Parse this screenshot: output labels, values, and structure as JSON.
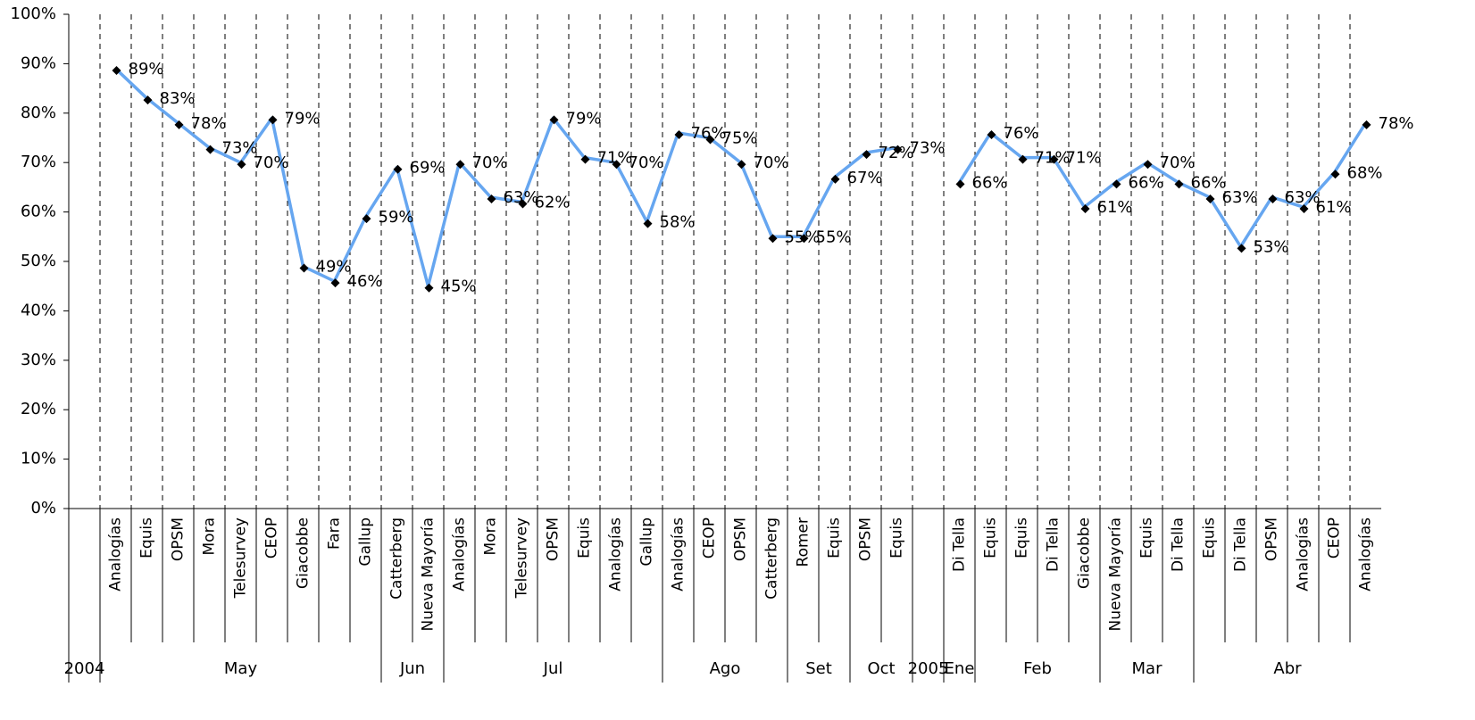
{
  "chart_data": {
    "type": "line",
    "categories": [
      null,
      "Analogías",
      "Equis",
      "OPSM",
      "Mora",
      "Telesurvey",
      "CEOP",
      "Giacobbe",
      "Fara",
      "Gallup",
      "Catterberg",
      "Nueva Mayoría",
      "Analogías",
      "Mora",
      "Telesurvey",
      "OPSM",
      "Equis",
      "Analogías",
      "Gallup",
      "Analogías",
      "CEOP",
      "OPSM",
      "Catterberg",
      "Romer",
      "Equis",
      "OPSM",
      "Equis",
      null,
      "Di Tella",
      "Equis",
      "Equis",
      "Di Tella",
      "Giacobbe",
      "Nueva Mayoría",
      "Equis",
      "Di Tella",
      "Equis",
      "Di Tella",
      "OPSM",
      "Analogías",
      "CEOP",
      "Analogías"
    ],
    "months": [
      "2004",
      "May",
      null,
      null,
      null,
      null,
      null,
      null,
      null,
      null,
      "Jun",
      null,
      "Jul",
      null,
      null,
      null,
      null,
      null,
      null,
      "Ago",
      null,
      null,
      null,
      "Set",
      null,
      "Oct",
      null,
      "2005",
      "Ene",
      "Feb",
      null,
      null,
      null,
      "Mar",
      null,
      null,
      "Abr",
      null,
      null,
      null,
      null,
      null
    ],
    "values": [
      null,
      89,
      83,
      78,
      73,
      70,
      79,
      49,
      46,
      59,
      69,
      45,
      70,
      63,
      62,
      79,
      71,
      70,
      58,
      76,
      75,
      70,
      55,
      55,
      67,
      72,
      73,
      null,
      66,
      76,
      71,
      71,
      61,
      66,
      70,
      66,
      63,
      53,
      63,
      61,
      68,
      78
    ],
    "value_labels": [
      null,
      "89%",
      "83%",
      "78%",
      "73%",
      "70%",
      "79%",
      "49%",
      "46%",
      "59%",
      "69%",
      "45%",
      "70%",
      "63%",
      "62%",
      "79%",
      "71%",
      "70%",
      "58%",
      "76%",
      "75%",
      "70%",
      "55%",
      "55%",
      "67%",
      "72%",
      "73%",
      null,
      "66%",
      "76%",
      "71%",
      "71%",
      "61%",
      "66%",
      "70%",
      "66%",
      "63%",
      "53%",
      "63%",
      "61%",
      "68%",
      "78%"
    ],
    "color": "#66a6f0",
    "marker_color": "#000000",
    "ylim": [
      0,
      100
    ],
    "yticks": [
      {
        "value": 0,
        "label": "0%"
      },
      {
        "value": 10,
        "label": "10%"
      },
      {
        "value": 20,
        "label": "20%"
      },
      {
        "value": 30,
        "label": "30%"
      },
      {
        "value": 40,
        "label": "40%"
      },
      {
        "value": 50,
        "label": "50%"
      },
      {
        "value": 60,
        "label": "60%"
      },
      {
        "value": 70,
        "label": "70%"
      },
      {
        "value": 80,
        "label": "80%"
      },
      {
        "value": 90,
        "label": "90%"
      },
      {
        "value": 100,
        "label": "100%"
      }
    ]
  }
}
